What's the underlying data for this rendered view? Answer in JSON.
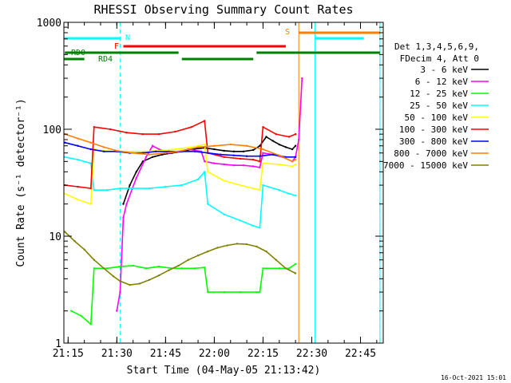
{
  "chart_data": {
    "type": "line",
    "title": "RHESSI Observing Summary Count Rates",
    "xlabel": "Start Time (04-May-05 21:13:42)",
    "ylabel": "Count Rate (s⁻¹ detector⁻¹)",
    "y_scale": "log",
    "ylim": [
      1,
      1000
    ],
    "xlim": [
      "21:13:42",
      "22:52:00"
    ],
    "x_ticks": [
      "21:15",
      "21:30",
      "21:45",
      "22:00",
      "22:15",
      "22:30",
      "22:45"
    ],
    "y_ticks": [
      "1",
      "10",
      "100",
      "1000"
    ],
    "grid": false,
    "legend_position": "right",
    "legend_header": [
      "Det 1,3,4,5,6,9,",
      "FDecim 4, Att 0"
    ],
    "footer_stamp": "16-Oct-2021 15:01",
    "series": [
      {
        "name": "3 - 6 keV",
        "color": "#000000",
        "points": [
          [
            "21:32",
            20
          ],
          [
            "21:34",
            30
          ],
          [
            "21:36",
            40
          ],
          [
            "21:38",
            50
          ],
          [
            "21:41",
            55
          ],
          [
            "21:44",
            58
          ],
          [
            "21:47",
            60
          ],
          [
            "21:50",
            62
          ],
          [
            "21:53",
            65
          ],
          [
            "21:57",
            67
          ],
          [
            "22:00",
            65
          ],
          [
            "22:03",
            63
          ],
          [
            "22:06",
            62
          ],
          [
            "22:09",
            62
          ],
          [
            "22:12",
            64
          ],
          [
            "22:14",
            70
          ],
          [
            "22:16",
            85
          ],
          [
            "22:18",
            78
          ],
          [
            "22:20",
            72
          ],
          [
            "22:22",
            68
          ],
          [
            "22:24",
            65
          ],
          [
            "22:25",
            70
          ]
        ]
      },
      {
        "name": "6 - 12 keV",
        "color": "#ff00ff",
        "points": [
          [
            "21:30",
            2
          ],
          [
            "21:31",
            3
          ],
          [
            "21:32",
            15
          ],
          [
            "21:33",
            20
          ],
          [
            "21:36",
            35
          ],
          [
            "21:39",
            55
          ],
          [
            "21:41",
            70
          ],
          [
            "21:43",
            65
          ],
          [
            "21:46",
            60
          ],
          [
            "21:49",
            62
          ],
          [
            "21:52",
            65
          ],
          [
            "21:56",
            62
          ],
          [
            "21:57",
            50
          ],
          [
            "22:00",
            48
          ],
          [
            "22:03",
            47
          ],
          [
            "22:06",
            46
          ],
          [
            "22:09",
            46
          ],
          [
            "22:12",
            45
          ],
          [
            "22:14",
            44
          ],
          [
            "22:15",
            60
          ],
          [
            "22:18",
            58
          ],
          [
            "22:21",
            55
          ],
          [
            "22:24",
            50
          ],
          [
            "22:25",
            55
          ],
          [
            "22:26",
            80
          ],
          [
            "22:27",
            300
          ]
        ]
      },
      {
        "name": "12 - 25 keV",
        "color": "#00ff00",
        "points": [
          [
            "21:16",
            2
          ],
          [
            "21:19",
            1.8
          ],
          [
            "21:22",
            1.5
          ],
          [
            "21:23",
            5
          ],
          [
            "21:27",
            5
          ],
          [
            "21:31",
            5.2
          ],
          [
            "21:35",
            5.3
          ],
          [
            "21:39",
            5
          ],
          [
            "21:43",
            5.2
          ],
          [
            "21:47",
            5
          ],
          [
            "21:50",
            5
          ],
          [
            "21:54",
            5
          ],
          [
            "21:57",
            5.1
          ],
          [
            "21:58",
            3
          ],
          [
            "22:03",
            3
          ],
          [
            "22:08",
            3
          ],
          [
            "22:13",
            3
          ],
          [
            "22:14",
            3
          ],
          [
            "22:15",
            5
          ],
          [
            "22:20",
            5
          ],
          [
            "22:23",
            5
          ],
          [
            "22:25",
            5.5
          ]
        ]
      },
      {
        "name": "25 - 50 keV",
        "color": "#00ffff",
        "points": [
          [
            "21:14",
            55
          ],
          [
            "21:18",
            52
          ],
          [
            "21:22",
            48
          ],
          [
            "21:23",
            27
          ],
          [
            "21:27",
            27
          ],
          [
            "21:31",
            28
          ],
          [
            "21:35",
            28
          ],
          [
            "21:40",
            28
          ],
          [
            "21:45",
            29
          ],
          [
            "21:50",
            30
          ],
          [
            "21:55",
            34
          ],
          [
            "21:57",
            40
          ],
          [
            "21:58",
            20
          ],
          [
            "22:03",
            16
          ],
          [
            "22:08",
            14
          ],
          [
            "22:12",
            12.5
          ],
          [
            "22:14",
            12
          ],
          [
            "22:15",
            30
          ],
          [
            "22:20",
            27
          ],
          [
            "22:23",
            25
          ],
          [
            "22:25",
            24
          ]
        ]
      },
      {
        "name": "50 - 100 keV",
        "color": "#ffff00",
        "points": [
          [
            "21:14",
            25
          ],
          [
            "21:18",
            22
          ],
          [
            "21:22",
            20
          ],
          [
            "21:23",
            65
          ],
          [
            "21:28",
            62
          ],
          [
            "21:33",
            62
          ],
          [
            "21:38",
            62
          ],
          [
            "21:43",
            63
          ],
          [
            "21:48",
            65
          ],
          [
            "21:53",
            68
          ],
          [
            "21:57",
            72
          ],
          [
            "21:58",
            40
          ],
          [
            "22:03",
            33
          ],
          [
            "22:08",
            30
          ],
          [
            "22:12",
            28
          ],
          [
            "22:14",
            27
          ],
          [
            "22:15",
            48
          ],
          [
            "22:20",
            47
          ],
          [
            "22:24",
            45
          ],
          [
            "22:25",
            47
          ]
        ]
      },
      {
        "name": "100 - 300 keV",
        "color": "#ff0000",
        "points": [
          [
            "21:14",
            30
          ],
          [
            "21:18",
            29
          ],
          [
            "21:22",
            28
          ],
          [
            "21:23",
            105
          ],
          [
            "21:28",
            100
          ],
          [
            "21:33",
            93
          ],
          [
            "21:38",
            90
          ],
          [
            "21:43",
            90
          ],
          [
            "21:48",
            95
          ],
          [
            "21:53",
            105
          ],
          [
            "21:57",
            120
          ],
          [
            "21:58",
            60
          ],
          [
            "22:03",
            55
          ],
          [
            "22:08",
            53
          ],
          [
            "22:12",
            52
          ],
          [
            "22:14",
            50
          ],
          [
            "22:15",
            105
          ],
          [
            "22:19",
            90
          ],
          [
            "22:23",
            85
          ],
          [
            "22:25",
            90
          ]
        ]
      },
      {
        "name": "300 - 800 keV",
        "color": "#0000ff",
        "points": [
          [
            "21:14",
            75
          ],
          [
            "21:18",
            70
          ],
          [
            "21:22",
            65
          ],
          [
            "21:26",
            62
          ],
          [
            "21:30",
            62
          ],
          [
            "21:34",
            60
          ],
          [
            "21:38",
            60
          ],
          [
            "21:42",
            62
          ],
          [
            "21:46",
            62
          ],
          [
            "21:50",
            62
          ],
          [
            "21:54",
            62
          ],
          [
            "21:58",
            60
          ],
          [
            "22:02",
            58
          ],
          [
            "22:06",
            57
          ],
          [
            "22:10",
            56
          ],
          [
            "22:14",
            56
          ],
          [
            "22:18",
            58
          ],
          [
            "22:22",
            55
          ],
          [
            "22:25",
            55
          ]
        ]
      },
      {
        "name": "800 - 7000 keV",
        "color": "#ff8000",
        "points": [
          [
            "21:14",
            90
          ],
          [
            "21:18",
            82
          ],
          [
            "21:22",
            75
          ],
          [
            "21:26",
            68
          ],
          [
            "21:30",
            63
          ],
          [
            "21:35",
            60
          ],
          [
            "21:40",
            58
          ],
          [
            "21:45",
            60
          ],
          [
            "21:50",
            63
          ],
          [
            "21:55",
            68
          ],
          [
            "22:00",
            70
          ],
          [
            "22:05",
            72
          ],
          [
            "22:10",
            70
          ],
          [
            "22:15",
            65
          ],
          [
            "22:20",
            57
          ],
          [
            "22:24",
            50
          ],
          [
            "22:25",
            52
          ]
        ]
      },
      {
        "name": "7000 - 15000 keV",
        "color": "#808000",
        "points": [
          [
            "21:14",
            11
          ],
          [
            "21:17",
            9
          ],
          [
            "21:20",
            7.5
          ],
          [
            "21:23",
            6
          ],
          [
            "21:26",
            5
          ],
          [
            "21:29",
            4.2
          ],
          [
            "21:31",
            3.8
          ],
          [
            "21:34",
            3.5
          ],
          [
            "21:37",
            3.6
          ],
          [
            "21:40",
            3.9
          ],
          [
            "21:43",
            4.3
          ],
          [
            "21:46",
            4.8
          ],
          [
            "21:49",
            5.3
          ],
          [
            "21:52",
            6
          ],
          [
            "21:55",
            6.6
          ],
          [
            "21:58",
            7.2
          ],
          [
            "22:01",
            7.8
          ],
          [
            "22:04",
            8.2
          ],
          [
            "22:07",
            8.5
          ],
          [
            "22:10",
            8.4
          ],
          [
            "22:13",
            8
          ],
          [
            "22:16",
            7.2
          ],
          [
            "22:19",
            6
          ],
          [
            "22:22",
            5
          ],
          [
            "22:25",
            4.5
          ]
        ]
      }
    ],
    "flag_bars": [
      {
        "label": "N",
        "color": "#00ffff",
        "segments": [
          [
            "21:13:42",
            "21:31"
          ],
          [
            "22:31",
            "22:46"
          ]
        ]
      },
      {
        "label": "F",
        "color": "#ff0000",
        "segments": [
          [
            "21:32",
            "22:22"
          ]
        ]
      },
      {
        "label": "S",
        "color": "#ff8000",
        "segments": [
          [
            "22:26",
            "22:51"
          ]
        ]
      },
      {
        "label": "RD0",
        "color": "#008000",
        "segments": [
          [
            "21:14",
            "21:49"
          ],
          [
            "22:13",
            "22:51"
          ]
        ]
      },
      {
        "label": "RD4",
        "color": "#008000",
        "segments": [
          [
            "21:13:42",
            "21:20"
          ],
          [
            "21:50",
            "22:12"
          ]
        ]
      }
    ],
    "vertical_markers": [
      {
        "time": "21:13:42",
        "color": "#00ffff",
        "style": "solid"
      },
      {
        "time": "21:31",
        "color": "#00ffff",
        "style": "dashed"
      },
      {
        "time": "22:26",
        "color": "#ff8000",
        "style": "solid"
      },
      {
        "time": "22:31",
        "color": "#00ffff",
        "style": "solid"
      },
      {
        "time": "22:51",
        "color": "#ff8000",
        "style": "dashed"
      },
      {
        "time": "22:51",
        "color": "#00ffff",
        "style": "solid"
      }
    ]
  }
}
